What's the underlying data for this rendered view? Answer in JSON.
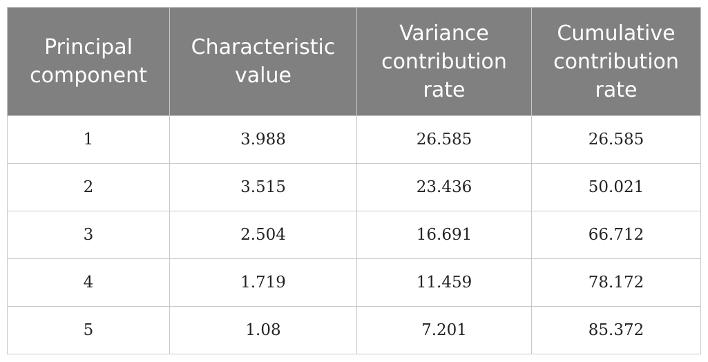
{
  "table": {
    "headers": [
      "Principal\ncomponent",
      "Characteristic\nvalue",
      "Variance\ncontribution\nrate",
      "Cumulative\ncontribution\nrate"
    ],
    "rows": [
      [
        "1",
        "3.988",
        "26.585",
        "26.585"
      ],
      [
        "2",
        "3.515",
        "23.436",
        "50.021"
      ],
      [
        "3",
        "2.504",
        "16.691",
        "66.712"
      ],
      [
        "4",
        "1.719",
        "11.459",
        "78.172"
      ],
      [
        "5",
        "1.08",
        "7.201",
        "85.372"
      ]
    ]
  },
  "colors": {
    "header_bg": "#808080",
    "header_text": "#ffffff",
    "border": "#c8c8c8"
  }
}
